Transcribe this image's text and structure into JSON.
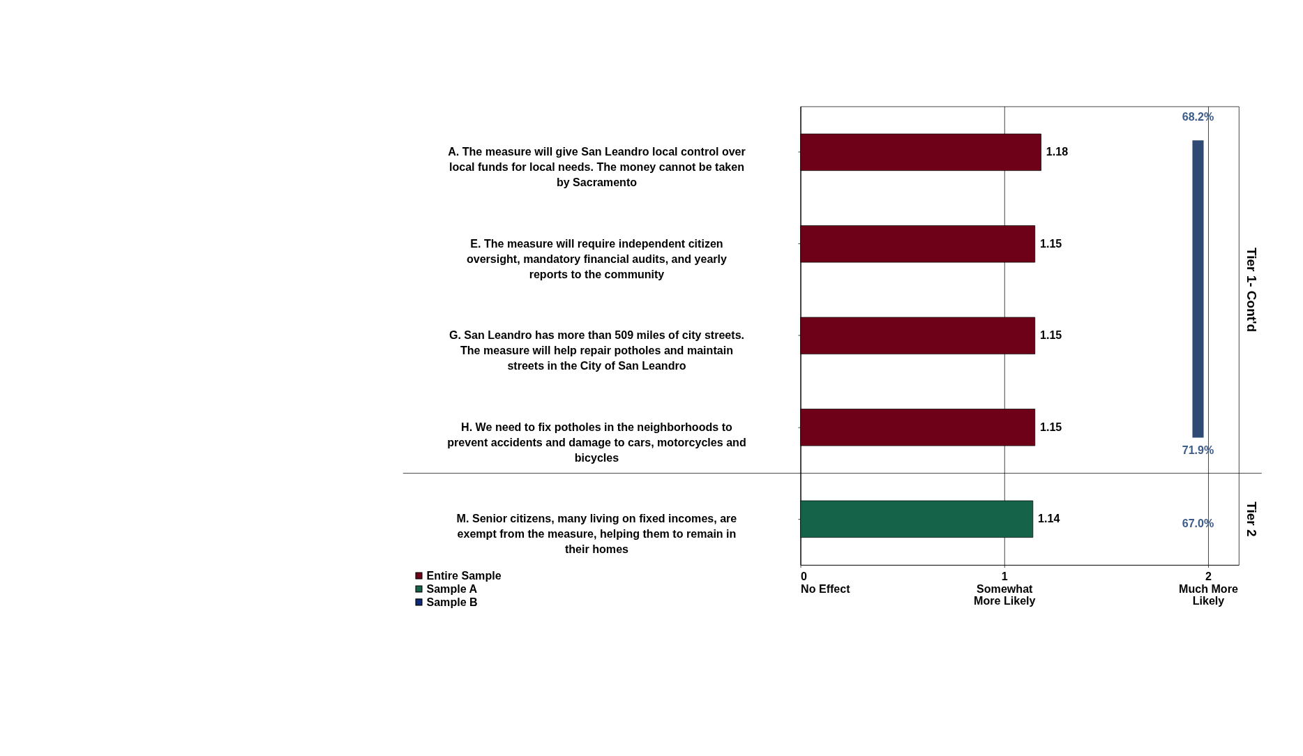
{
  "chart_data": {
    "type": "bar",
    "orientation": "horizontal",
    "categories": [
      "A. The measure will give San Leandro local control over local funds for local needs. The money cannot be taken by Sacramento",
      "E. The measure will require independent citizen oversight, mandatory financial audits, and yearly reports to the community",
      "G. San Leandro has more than 509 miles of city streets. The measure will help repair potholes and maintain streets in the City of San Leandro",
      "H. We need to fix potholes in the neighborhoods to prevent accidents and damage to cars, motorcycles and bicycles",
      "M. Senior citizens, many living on fixed incomes, are exempt from the measure, helping them to remain in their homes"
    ],
    "series": [
      {
        "name": "Entire Sample",
        "color": "#6e0018",
        "values": [
          1.18,
          1.15,
          1.15,
          1.15,
          null
        ]
      },
      {
        "name": "Sample A",
        "color": "#156349",
        "values": [
          null,
          null,
          null,
          null,
          1.14
        ]
      },
      {
        "name": "Sample B",
        "color": "#0d2a7a",
        "values": [
          null,
          null,
          null,
          null,
          null
        ]
      }
    ],
    "xlim": [
      0,
      2.15
    ],
    "xticks": [
      {
        "value": 0,
        "label": "0\nNo Effect"
      },
      {
        "value": 1,
        "label": "1\nSomewhat\nMore Likely"
      },
      {
        "value": 2,
        "label": "2\nMuch More\nLikely"
      }
    ],
    "data_labels": true,
    "grid": "x",
    "legend": "bottom left",
    "annotations": [
      "68.2%",
      "71.9%",
      "67.0%",
      "Tier 1- Cont'd",
      "Tier 2"
    ]
  }
}
